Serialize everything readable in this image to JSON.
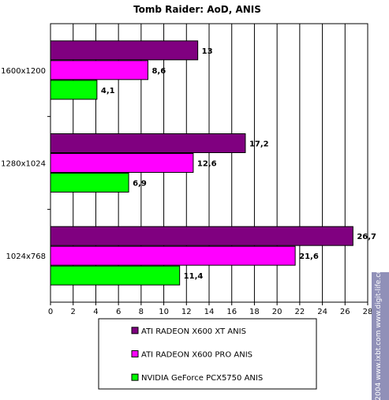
{
  "chart_data": {
    "type": "bar",
    "orientation": "horizontal",
    "title": "Tomb Raider: AoD, ANIS",
    "categories": [
      "1600x1200",
      "1280x1024",
      "1024x768"
    ],
    "series": [
      {
        "name": "ATI  RADEON X600 XT ANIS",
        "color": "#800080",
        "values": [
          13,
          17.2,
          26.7
        ],
        "labels": [
          "13",
          "17,2",
          "26,7"
        ]
      },
      {
        "name": "ATI RADEON X600 PRO ANIS",
        "color": "#ff00ff",
        "values": [
          8.6,
          12.6,
          21.6
        ],
        "labels": [
          "8,6",
          "12,6",
          "21,6"
        ]
      },
      {
        "name": "NVIDIA GeForce PCX5750 ANIS",
        "color": "#00ff00",
        "values": [
          4.1,
          6.9,
          11.4
        ],
        "labels": [
          "4,1",
          "6,9",
          "11,4"
        ]
      }
    ],
    "xlim": [
      0,
      28
    ],
    "xticks": [
      0,
      2,
      4,
      6,
      8,
      10,
      12,
      14,
      16,
      18,
      20,
      22,
      24,
      26,
      28
    ],
    "grid": true,
    "legend_position": "bottom"
  },
  "watermark": {
    "text": "© 2004 www.ixbt.com  www.digit-life.com"
  }
}
